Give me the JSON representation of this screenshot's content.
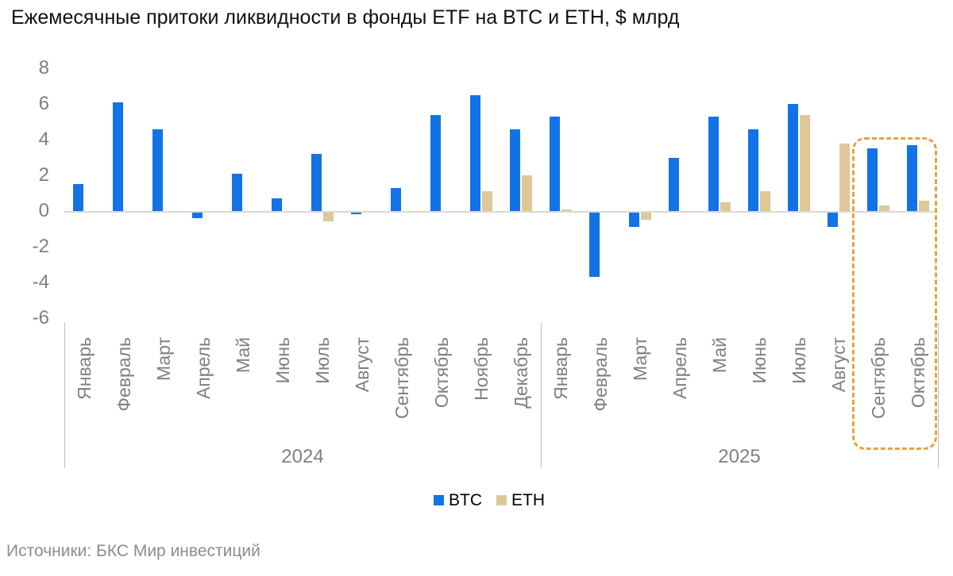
{
  "title": "Ежемесячные притоки ликвидности в фонды ETF на BTC и ETH, $ млрд",
  "source": "Источники: БКС Мир инвестиций",
  "colors": {
    "btc": "#1273e6",
    "eth": "#dec897",
    "highlight": "#e6a33c",
    "axis_text": "#7f7f7f",
    "zero_line": "#d9d9d9",
    "separator_line": "#bfbfbf"
  },
  "chart_data": {
    "type": "bar",
    "title": "Ежемесячные притоки ликвидности в фонды ETF на BTC и ETH, $ млрд",
    "xlabel": "",
    "ylabel": "$ млрд",
    "ylim": [
      -6,
      8
    ],
    "yticks": [
      8,
      6,
      4,
      2,
      0,
      -2,
      -4,
      -6
    ],
    "grid": false,
    "legend_position": "bottom-center",
    "groups": [
      {
        "year": "2024",
        "months": [
          "Январь",
          "Февраль",
          "Март",
          "Апрель",
          "Май",
          "Июнь",
          "Июль",
          "Август",
          "Сентябрь",
          "Октябрь",
          "Ноябрь",
          "Декабрь"
        ]
      },
      {
        "year": "2025",
        "months": [
          "Январь",
          "Февраль",
          "Март",
          "Апрель",
          "Май",
          "Июнь",
          "Июль",
          "Август",
          "Сентябрь",
          "Октябрь"
        ]
      }
    ],
    "series": [
      {
        "name": "BTC",
        "color": "#1273e6",
        "values": [
          1.5,
          6.1,
          4.6,
          -0.3,
          2.1,
          0.7,
          3.2,
          -0.1,
          1.3,
          5.4,
          6.5,
          4.6,
          5.3,
          -3.6,
          -0.8,
          3.0,
          5.3,
          4.6,
          6.0,
          -0.8,
          3.5,
          3.7
        ]
      },
      {
        "name": "ETH",
        "color": "#dec897",
        "values": [
          null,
          null,
          null,
          null,
          null,
          null,
          -0.5,
          null,
          null,
          null,
          1.1,
          2.0,
          0.1,
          null,
          -0.4,
          null,
          0.5,
          1.1,
          5.4,
          3.8,
          0.3,
          0.6
        ]
      }
    ],
    "highlight": {
      "year": "2025",
      "months": [
        "Сентябрь",
        "Октябрь"
      ],
      "color": "#e6a33c"
    }
  }
}
